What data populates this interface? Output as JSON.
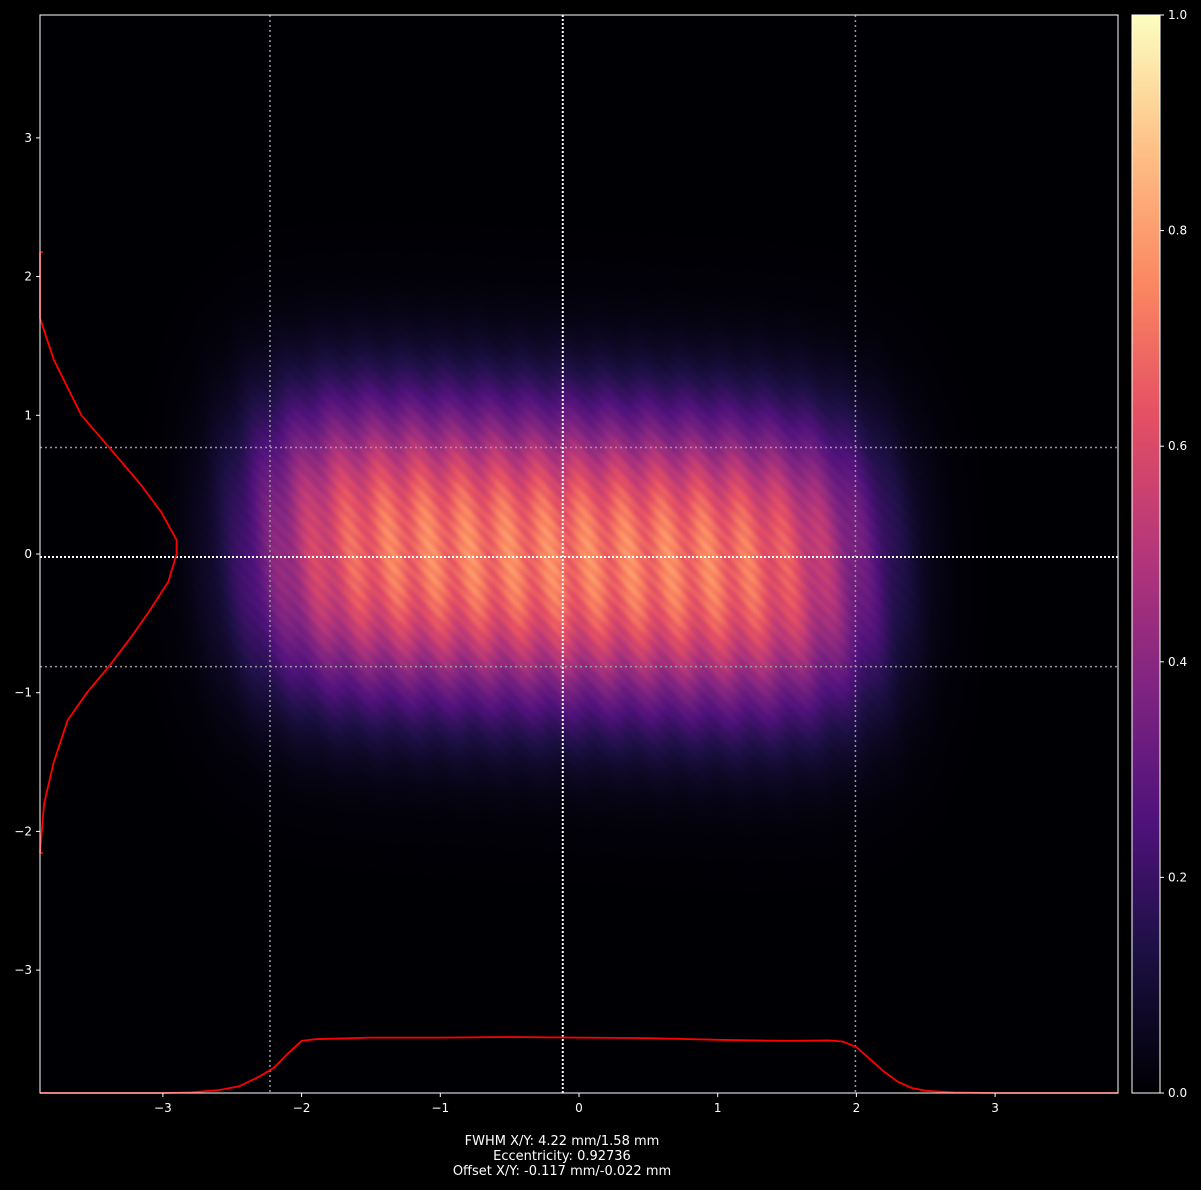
{
  "chart_data": {
    "type": "heatmap",
    "title": "",
    "xlabel": "",
    "ylabel": "",
    "xlim": [
      -3.886,
      3.886
    ],
    "ylim": [
      -3.886,
      3.886
    ],
    "xticks": [
      -3,
      -2,
      -1,
      0,
      1,
      2,
      3
    ],
    "yticks": [
      -3,
      -2,
      -1,
      0,
      1,
      2,
      3
    ],
    "xtick_labels": [
      "−3",
      "−2",
      "−1",
      "0",
      "1",
      "2",
      "3"
    ],
    "ytick_labels": [
      "−3",
      "−2",
      "−1",
      "0",
      "1",
      "2",
      "3"
    ],
    "colormap": "magma",
    "colorbar": {
      "range": [
        0,
        1
      ],
      "ticks": [
        0,
        0.2,
        0.4,
        0.6,
        0.8,
        1.0
      ],
      "tick_labels": [
        "0.0",
        "0.2",
        "0.4",
        "0.6",
        "0.8",
        "1.0"
      ]
    },
    "beam": {
      "center_x": -0.117,
      "center_y": -0.022,
      "fwhm_x": 4.22,
      "fwhm_y": 1.58,
      "peak": 0.72
    },
    "guide_lines": {
      "center_vertical": -0.117,
      "center_horizontal": -0.022,
      "fwhm_vertical": [
        -2.228,
        1.993
      ],
      "fwhm_horizontal": [
        0.768,
        -0.812
      ]
    },
    "x_profile": {
      "color": "#ff0000",
      "x": [
        -3.886,
        -3.0,
        -2.8,
        -2.6,
        -2.45,
        -2.3,
        -2.2,
        -2.1,
        -2.0,
        -1.9,
        -1.5,
        -1.0,
        -0.5,
        0.0,
        0.5,
        1.0,
        1.5,
        1.8,
        1.9,
        2.0,
        2.1,
        2.2,
        2.3,
        2.4,
        2.5,
        2.7,
        3.0,
        3.886
      ],
      "values": [
        0.0,
        0.0,
        0.01,
        0.05,
        0.12,
        0.3,
        0.45,
        0.7,
        0.93,
        0.96,
        0.99,
        0.99,
        1.0,
        0.99,
        0.98,
        0.95,
        0.93,
        0.94,
        0.92,
        0.82,
        0.6,
        0.38,
        0.2,
        0.09,
        0.04,
        0.01,
        0.0,
        0.0
      ]
    },
    "y_profile": {
      "color": "#ff0000",
      "y": [
        2.18,
        2.17,
        1.7,
        1.4,
        1.2,
        1.0,
        0.77,
        0.5,
        0.3,
        0.1,
        0.0,
        -0.2,
        -0.4,
        -0.6,
        -0.81,
        -1.0,
        -1.2,
        -1.5,
        -1.8,
        -2.15,
        -2.16
      ],
      "values": [
        0.02,
        0.0,
        0.0,
        0.1,
        0.2,
        0.3,
        0.5,
        0.73,
        0.88,
        0.99,
        0.99,
        0.93,
        0.8,
        0.66,
        0.5,
        0.34,
        0.2,
        0.1,
        0.03,
        0.0,
        0.02
      ]
    }
  },
  "annotation": {
    "line1": "FWHM X/Y: 4.22 mm/1.58 mm",
    "line2": "Eccentricity: 0.92736",
    "line3": "Offset X/Y: -0.117 mm/-0.022 mm"
  }
}
